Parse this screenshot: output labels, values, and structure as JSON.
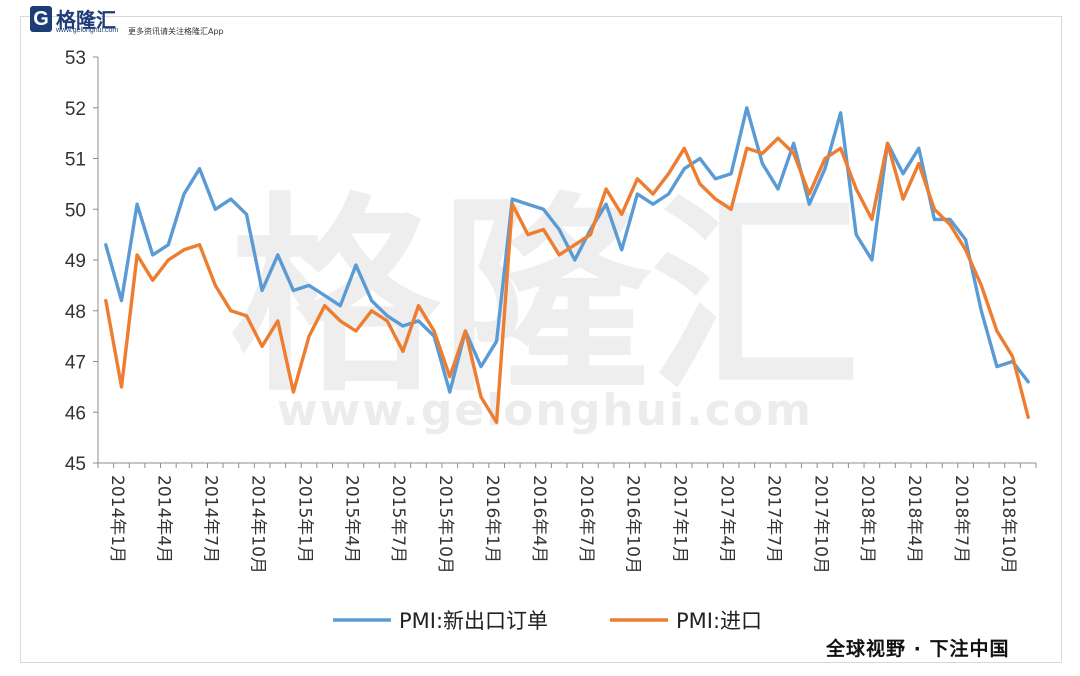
{
  "header": {
    "logo_mark": "G",
    "logo_name": "格隆汇",
    "logo_url": "www.gelonghui.com",
    "tagline": "更多资讯请关注格隆汇App"
  },
  "watermark": {
    "name": "格隆汇",
    "url": "www.gelonghui.com"
  },
  "footer": {
    "slogan": "全球视野 · 下注中国"
  },
  "colors": {
    "series1": "#5b9bd5",
    "series2": "#ed7d31",
    "axis": "#8c8c8c",
    "watermark": "#ededed"
  },
  "chart_data": {
    "type": "line",
    "title": "",
    "xlabel": "",
    "ylabel": "",
    "ylim": [
      45,
      53
    ],
    "yticks": [
      "45",
      "46",
      "47",
      "48",
      "49",
      "50",
      "51",
      "52",
      "53"
    ],
    "x": [
      "2014年1月",
      "2014年2月",
      "2014年3月",
      "2014年4月",
      "2014年5月",
      "2014年6月",
      "2014年7月",
      "2014年8月",
      "2014年9月",
      "2014年10月",
      "2014年11月",
      "2014年12月",
      "2015年1月",
      "2015年2月",
      "2015年3月",
      "2015年4月",
      "2015年5月",
      "2015年6月",
      "2015年7月",
      "2015年8月",
      "2015年9月",
      "2015年10月",
      "2015年11月",
      "2015年12月",
      "2016年1月",
      "2016年2月",
      "2016年3月",
      "2016年4月",
      "2016年5月",
      "2016年6月",
      "2016年7月",
      "2016年8月",
      "2016年9月",
      "2016年10月",
      "2016年11月",
      "2016年12月",
      "2017年1月",
      "2017年2月",
      "2017年3月",
      "2017年4月",
      "2017年5月",
      "2017年6月",
      "2017年7月",
      "2017年8月",
      "2017年9月",
      "2017年10月",
      "2017年11月",
      "2017年12月",
      "2018年1月",
      "2018年2月",
      "2018年3月",
      "2018年4月",
      "2018年5月",
      "2018年6月",
      "2018年7月",
      "2018年8月",
      "2018年9月",
      "2018年10月",
      "2018年11月",
      "2018年12月"
    ],
    "xtick_labels": [
      "2014年1月",
      "2014年4月",
      "2014年7月",
      "2014年10月",
      "2015年1月",
      "2015年4月",
      "2015年7月",
      "2015年10月",
      "2016年1月",
      "2016年4月",
      "2016年7月",
      "2016年10月",
      "2017年1月",
      "2017年4月",
      "2017年7月",
      "2017年10月",
      "2018年1月",
      "2018年4月",
      "2018年7月",
      "2018年10月"
    ],
    "series": [
      {
        "name": "PMI:新出口订单",
        "color": "#5b9bd5",
        "values": [
          49.3,
          48.2,
          50.1,
          49.1,
          49.3,
          50.3,
          50.8,
          50.0,
          50.2,
          49.9,
          48.4,
          49.1,
          48.4,
          48.5,
          48.3,
          48.1,
          48.9,
          48.2,
          47.9,
          47.7,
          47.8,
          47.5,
          46.4,
          47.6,
          46.9,
          47.4,
          50.2,
          50.1,
          50.0,
          49.6,
          49.0,
          49.6,
          50.1,
          49.2,
          50.3,
          50.1,
          50.3,
          50.8,
          51.0,
          50.6,
          50.7,
          52.0,
          50.9,
          50.4,
          51.3,
          50.1,
          50.8,
          51.9,
          49.5,
          49.0,
          51.3,
          50.7,
          51.2,
          49.8,
          49.8,
          49.4,
          48.0,
          46.9,
          47.0,
          46.6
        ]
      },
      {
        "name": "PMI:进口",
        "color": "#ed7d31",
        "values": [
          48.2,
          46.5,
          49.1,
          48.6,
          49.0,
          49.2,
          49.3,
          48.5,
          48.0,
          47.9,
          47.3,
          47.8,
          46.4,
          47.5,
          48.1,
          47.8,
          47.6,
          48.0,
          47.8,
          47.2,
          48.1,
          47.6,
          46.7,
          47.6,
          46.3,
          45.8,
          50.1,
          49.5,
          49.6,
          49.1,
          49.3,
          49.5,
          50.4,
          49.9,
          50.6,
          50.3,
          50.7,
          51.2,
          50.5,
          50.2,
          50.0,
          51.2,
          51.1,
          51.4,
          51.1,
          50.3,
          51.0,
          51.2,
          50.4,
          49.8,
          51.3,
          50.2,
          50.9,
          50.0,
          49.7,
          49.2,
          48.5,
          47.6,
          47.1,
          45.9
        ]
      }
    ],
    "legend_position": "bottom",
    "grid": false
  }
}
